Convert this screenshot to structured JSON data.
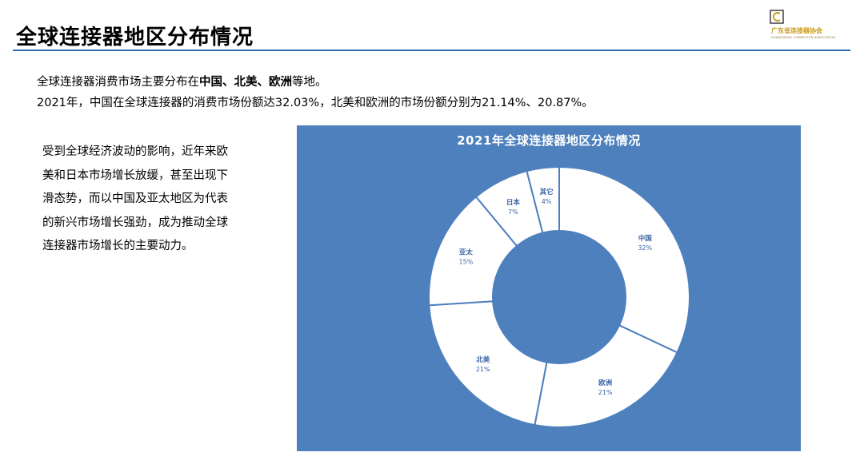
{
  "page": {
    "title": "全球连接器地区分布情况",
    "logo_text": "广东省连接器协会",
    "logo_subtext": "GUANGDONG CONNECTOR ASSOCIATION"
  },
  "intro": {
    "line1_prefix": "全球连接器消费市场主要分布在",
    "line1_bold": "中国、北美、欧洲",
    "line1_suffix": "等地。",
    "line2": "2021年，中国在全球连接器的消费市场份额达32.03%，北美和欧洲的市场份额分别为21.14%、20.87%。"
  },
  "body": {
    "lines": [
      "受到全球经济波动的影响，近年来欧",
      "美和日本市场增长放缓，甚至出现下",
      "滑态势，而以中国及亚太地区为代表",
      "的新兴市场增长强劲，成为推动全球",
      "连接器市场增长的主要动力。"
    ]
  },
  "colors": {
    "panel": "#4e80bd",
    "slice_fill": "#ffffff",
    "label": "#3a64a5",
    "title_rule": "#2e6db5"
  },
  "chart_data": {
    "type": "pie",
    "donut": true,
    "title": "2021年全球连接器地区分布情况",
    "slices": [
      {
        "label": "中国",
        "value": 32,
        "display": "32%"
      },
      {
        "label": "欧洲",
        "value": 21,
        "display": "21%"
      },
      {
        "label": "北美",
        "value": 21,
        "display": "21%"
      },
      {
        "label": "亚太",
        "value": 15,
        "display": "15%"
      },
      {
        "label": "日本",
        "value": 7,
        "display": "7%"
      },
      {
        "label": "其它",
        "value": 4,
        "display": "4%"
      }
    ]
  }
}
